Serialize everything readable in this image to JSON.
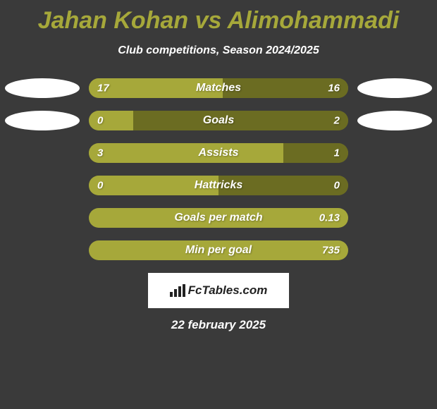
{
  "background_color": "#3a3a3a",
  "title": {
    "text": "Jahan Kohan vs Alimohammadi",
    "color": "#a6a83a"
  },
  "subtitle": {
    "text": "Club competitions, Season 2024/2025",
    "color": "#ffffff"
  },
  "bar_track_color": "#6b6c22",
  "bar_fill_color": "#a6a83a",
  "text_color": "#ffffff",
  "left_logo_color": "#ffffff",
  "right_logo_color": "#ffffff",
  "stats": [
    {
      "label": "Matches",
      "left_value": "17",
      "right_value": "16",
      "left_pct": 51.5,
      "show_left_logo": true,
      "show_right_logo": true
    },
    {
      "label": "Goals",
      "left_value": "0",
      "right_value": "2",
      "left_pct": 17,
      "show_left_logo": true,
      "show_right_logo": true
    },
    {
      "label": "Assists",
      "left_value": "3",
      "right_value": "1",
      "left_pct": 75,
      "show_left_logo": false,
      "show_right_logo": false
    },
    {
      "label": "Hattricks",
      "left_value": "0",
      "right_value": "0",
      "left_pct": 50,
      "show_left_logo": false,
      "show_right_logo": false
    },
    {
      "label": "Goals per match",
      "left_value": "",
      "right_value": "0.13",
      "left_pct": 100,
      "show_left_logo": false,
      "show_right_logo": false
    },
    {
      "label": "Min per goal",
      "left_value": "",
      "right_value": "735",
      "left_pct": 100,
      "show_left_logo": false,
      "show_right_logo": false
    }
  ],
  "footer": {
    "box_bg": "#ffffff",
    "text": "FcTables.com",
    "text_color": "#222222"
  },
  "date": {
    "text": "22 february 2025",
    "color": "#ffffff"
  }
}
